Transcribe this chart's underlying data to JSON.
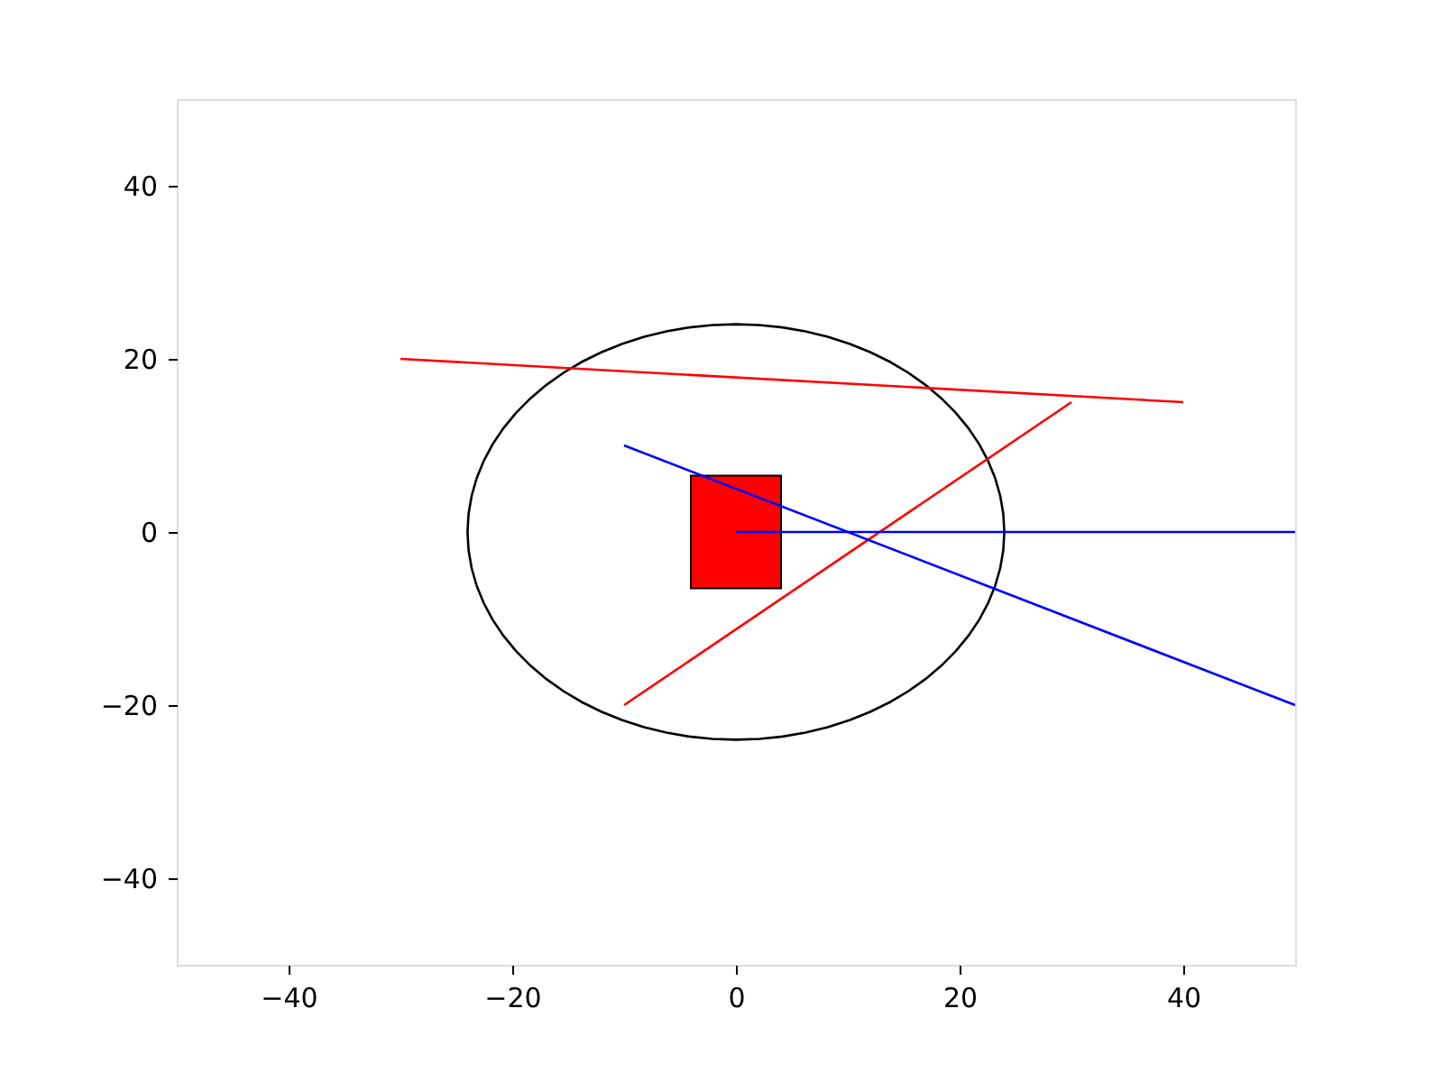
{
  "chart_data": {
    "type": "line",
    "xlim": [
      -50,
      50
    ],
    "ylim": [
      -50,
      50
    ],
    "xticks": [
      -40,
      -20,
      0,
      20,
      40
    ],
    "yticks": [
      -40,
      -20,
      0,
      20,
      40
    ],
    "grid": false,
    "series": [
      {
        "type": "bar",
        "color": "#ff0000",
        "x": [
          0
        ],
        "values": [
          13
        ],
        "base": [
          -6.5
        ]
      },
      {
        "color": "#ff0000",
        "x": [
          -30,
          40
        ],
        "values": [
          20,
          15
        ]
      },
      {
        "color": "#ff0000",
        "x": [
          -10,
          30
        ],
        "values": [
          -20,
          15
        ]
      },
      {
        "color": "#0000ff",
        "x": [
          -10,
          50
        ],
        "values": [
          10,
          -20
        ]
      },
      {
        "color": "#0000ff",
        "x": [
          0,
          50
        ],
        "values": [
          0,
          0
        ]
      }
    ]
  }
}
